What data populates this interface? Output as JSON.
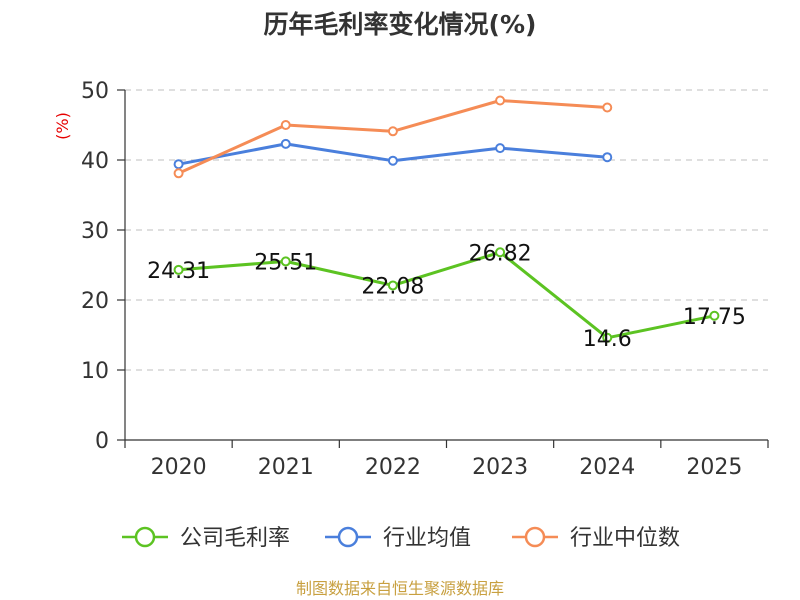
{
  "title": "历年毛利率变化情况(%)",
  "footer": "制图数据来自恒生聚源数据库",
  "colors": {
    "company": "#5cc322",
    "industry_avg": "#4a7fdc",
    "industry_median": "#f58c56",
    "grid": "#cccccc",
    "axis": "#333333",
    "unit": "#e60000",
    "footer": "#c8a040"
  },
  "chart_data": {
    "type": "line",
    "title": "历年毛利率变化情况(%)",
    "ylabel": "(%)",
    "categories": [
      "2020",
      "2021",
      "2022",
      "2023",
      "2024",
      "2025"
    ],
    "ylim": [
      0,
      50
    ],
    "yticks": [
      0,
      10,
      20,
      30,
      40,
      50
    ],
    "grid": "horizontal-dashed",
    "legend_position": "bottom",
    "series": [
      {
        "name": "公司毛利率",
        "color": "#5cc322",
        "values": [
          24.31,
          25.51,
          22.08,
          26.82,
          14.6,
          17.75
        ],
        "labels": [
          "24.31",
          "25.51",
          "22.08",
          "26.82",
          "14.6",
          "17.75"
        ]
      },
      {
        "name": "行业均值",
        "color": "#4a7fdc",
        "values": [
          39.4,
          42.3,
          39.9,
          41.7,
          40.4,
          null
        ]
      },
      {
        "name": "行业中位数",
        "color": "#f58c56",
        "values": [
          38.1,
          45.0,
          44.1,
          48.5,
          47.5,
          null
        ]
      }
    ]
  }
}
